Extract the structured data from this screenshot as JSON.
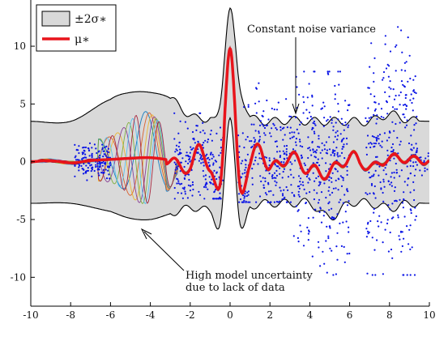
{
  "chart_data": {
    "type": "scatter",
    "title": "",
    "xlabel": "",
    "ylabel": "",
    "xlim": [
      -10,
      10
    ],
    "ylim": [
      -12.5,
      14
    ],
    "x_ticks": [
      -10,
      -8,
      -6,
      -4,
      -2,
      0,
      2,
      4,
      6,
      8,
      10
    ],
    "y_ticks": [
      -10,
      -5,
      0,
      5,
      10
    ],
    "grid": false,
    "legend_position": "top-left",
    "legend": [
      {
        "label": "±2σ∗",
        "style": "gray band"
      },
      {
        "label": "μ∗",
        "style": "thick red line"
      }
    ],
    "annotations": [
      {
        "lines": [
          "Constant noise variance"
        ],
        "arrow_to": [
          3.2,
          2.3
        ]
      },
      {
        "lines": [
          "High model uncertainty",
          "due to lack of data"
        ],
        "arrow_to": [
          -4.5,
          -4.9
        ]
      }
    ],
    "colors": {
      "band_fill": "#d9d9d9",
      "band_edge": "#000000",
      "mean": "#e8141b",
      "scatter": "#0a14e6",
      "samples": [
        "#0072bd",
        "#d95319",
        "#edb120",
        "#7e2f8e",
        "#77ac30",
        "#4dbeee",
        "#a2142f"
      ]
    },
    "series": [
      {
        "name": "μ∗",
        "x": [
          -10,
          -9,
          -8,
          -7,
          -6,
          -5,
          -4,
          -3,
          -2,
          -1.5,
          -1,
          -0.5,
          0,
          0.5,
          1,
          1.5,
          2,
          3,
          4,
          5,
          6,
          7,
          8,
          9,
          10
        ],
        "y": [
          0,
          0.1,
          -0.1,
          0.1,
          0.2,
          0.3,
          0.35,
          0.1,
          -0.6,
          1.4,
          -0.8,
          -2,
          9.8,
          -2.2,
          -0.3,
          1.3,
          -0.6,
          0.4,
          -0.7,
          -0.9,
          0.4,
          -0.5,
          0.3,
          0.2,
          0.1
        ]
      },
      {
        "name": "+2σ∗",
        "x": [
          -10,
          -8,
          -6,
          -5,
          -4,
          -3,
          -2,
          -1,
          -0.5,
          0,
          0.5,
          1,
          2,
          3,
          4,
          5,
          6,
          7,
          8,
          9,
          10
        ],
        "y": [
          3.5,
          3.5,
          5.4,
          6.0,
          6.0,
          5.5,
          4.0,
          3.8,
          5.0,
          13.3,
          6.3,
          3.9,
          3.5,
          3.6,
          3.5,
          3.5,
          3.5,
          3.5,
          4.1,
          3.6,
          3.5
        ]
      },
      {
        "name": "−2σ∗",
        "x": [
          -10,
          -8,
          -6,
          -5,
          -4,
          -3,
          -2,
          -1,
          -0.5,
          0,
          0.5,
          1,
          2,
          3,
          4,
          5,
          6,
          7,
          8,
          9,
          10
        ],
        "y": [
          -3.6,
          -3.6,
          -4.3,
          -4.9,
          -5.0,
          -4.5,
          -4.0,
          -4.3,
          -5.4,
          3.8,
          -5.4,
          -3.9,
          -3.6,
          -3.6,
          -3.6,
          -4.8,
          -3.6,
          -3.6,
          -4.0,
          -3.6,
          -3.6
        ]
      }
    ],
    "scatter_clusters": [
      {
        "x_range": [
          -7.8,
          -6.0
        ],
        "y_range": [
          -1.6,
          1.6
        ],
        "n": 150
      },
      {
        "x_range": [
          -2.8,
          -0.3
        ],
        "y_range": [
          -3.2,
          4.2
        ],
        "n": 220
      },
      {
        "x_range": [
          0.4,
          3.2
        ],
        "y_range": [
          -3.5,
          6.8
        ],
        "n": 260
      },
      {
        "x_range": [
          3.2,
          6.0
        ],
        "y_range": [
          -9.8,
          7.8
        ],
        "n": 320
      },
      {
        "x_range": [
          6.8,
          9.4
        ],
        "y_range": [
          -9.8,
          12.0
        ],
        "n": 300
      },
      {
        "x_range": [
          9.0,
          10.0
        ],
        "y_range": [
          -1.2,
          1.2
        ],
        "n": 30
      }
    ]
  }
}
